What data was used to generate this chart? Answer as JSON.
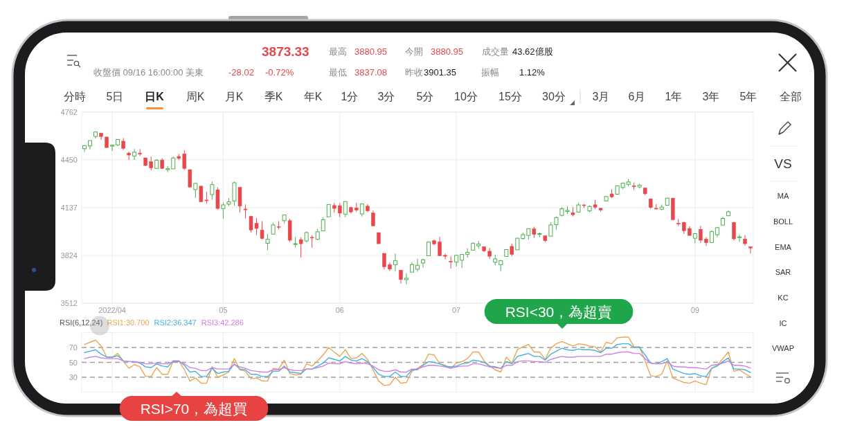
{
  "chart_data": [
    {
      "type": "other",
      "annotations": [
        "3873.33",
        "最高",
        "3880.95",
        "今開",
        "3880.95",
        "成交量",
        "43.62億股",
        "收盤價 09/16 16:00:00 美東",
        "-28.02",
        "-0.72%",
        "最低",
        "3837.08",
        "昨收",
        "3901.35",
        "振幅",
        "1.12%",
        "分時",
        "5日",
        "日K",
        "周K",
        "月K",
        "季K",
        "年K",
        "1分",
        "3分",
        "5分",
        "10分",
        "15分",
        "30分",
        "3月",
        "6月",
        "1年",
        "3年",
        "5年",
        "全部",
        "VS",
        "MA",
        "BOLL",
        "EMA",
        "SAR",
        "KC",
        "IC",
        "VWAP"
      ]
    },
    {
      "type": "candlestick",
      "ylim": [
        3512,
        4762
      ],
      "yticks": [
        3512,
        3824,
        4137,
        4450,
        4762
      ],
      "grid": true,
      "categories": [
        null,
        null,
        null,
        null,
        null,
        "2022/04",
        null,
        null,
        null,
        null,
        null,
        null,
        null,
        null,
        null,
        null,
        null,
        null,
        null,
        null,
        null,
        null,
        null,
        null,
        null,
        "05",
        null,
        null,
        null,
        null,
        null,
        null,
        null,
        null,
        null,
        null,
        null,
        null,
        null,
        null,
        null,
        null,
        null,
        null,
        null,
        null,
        "06",
        null,
        null,
        null,
        null,
        null,
        null,
        null,
        null,
        null,
        null,
        null,
        null,
        null,
        null,
        null,
        null,
        null,
        null,
        null,
        null,
        "07",
        null,
        null,
        null,
        null,
        null,
        null,
        null,
        null,
        null,
        null,
        null,
        null,
        null,
        null,
        null,
        null,
        null,
        null,
        null,
        null,
        null,
        null,
        null,
        null,
        null,
        null,
        null,
        null,
        null,
        null,
        null,
        null,
        null,
        null,
        null,
        null,
        null,
        null,
        null,
        null,
        null,
        null,
        "09",
        null,
        null,
        null,
        null,
        null,
        null,
        null,
        null,
        null,
        null
      ],
      "ohlc": [
        [
          4523,
          4546,
          4501,
          4543
        ],
        [
          4541,
          4576,
          4518,
          4576
        ],
        [
          4603,
          4637,
          4590,
          4632
        ],
        [
          4624,
          4628,
          4581,
          4602
        ],
        [
          4599,
          4603,
          4530,
          4530
        ],
        [
          4540,
          4549,
          4508,
          4546
        ],
        [
          4548,
          4584,
          4539,
          4583
        ],
        [
          4572,
          4593,
          4514,
          4525
        ],
        [
          4494,
          4504,
          4450,
          4481
        ],
        [
          4475,
          4521,
          4450,
          4500
        ],
        [
          4494,
          4520,
          4475,
          4488
        ],
        [
          4463,
          4464,
          4408,
          4413
        ],
        [
          4438,
          4471,
          4381,
          4397
        ],
        [
          4394,
          4454,
          4393,
          4447
        ],
        [
          4449,
          4460,
          4391,
          4393
        ],
        [
          4386,
          4410,
          4370,
          4392
        ],
        [
          4391,
          4471,
          4391,
          4462
        ],
        [
          4472,
          4488,
          4449,
          4459
        ],
        [
          4489,
          4513,
          4384,
          4394
        ],
        [
          4386,
          4386,
          4268,
          4272
        ],
        [
          4255,
          4299,
          4201,
          4296
        ],
        [
          4278,
          4278,
          4175,
          4175
        ],
        [
          4187,
          4241,
          4163,
          4184
        ],
        [
          4223,
          4308,
          4189,
          4288
        ],
        [
          4254,
          4270,
          4124,
          4132
        ],
        [
          4131,
          4170,
          4063,
          4155
        ],
        [
          4160,
          4200,
          4147,
          4175
        ],
        [
          4181,
          4308,
          4149,
          4300
        ],
        [
          4270,
          4270,
          4106,
          4147
        ],
        [
          4128,
          4158,
          4068,
          4123
        ],
        [
          4081,
          4081,
          3975,
          3991
        ],
        [
          4035,
          4069,
          3958,
          4001
        ],
        [
          3990,
          4049,
          3929,
          3935
        ],
        [
          3904,
          3965,
          3859,
          3930
        ],
        [
          3964,
          4039,
          3964,
          4024
        ],
        [
          4013,
          4049,
          3995,
          4008
        ],
        [
          4052,
          4091,
          4034,
          4089
        ],
        [
          4052,
          4063,
          3912,
          3924
        ],
        [
          3899,
          3946,
          3877,
          3901
        ],
        [
          3928,
          3943,
          3810,
          3901
        ],
        [
          3919,
          3982,
          3909,
          3974
        ],
        [
          3943,
          3956,
          3875,
          3941
        ],
        [
          3930,
          3999,
          3925,
          3979
        ],
        [
          3985,
          4075,
          3985,
          4058
        ],
        [
          4077,
          4158,
          4077,
          4158
        ],
        [
          4151,
          4168,
          4105,
          4132
        ],
        [
          4150,
          4167,
          4074,
          4101
        ],
        [
          4095,
          4178,
          4074,
          4177
        ],
        [
          4138,
          4143,
          4099,
          4109
        ],
        [
          4135,
          4169,
          4109,
          4121
        ],
        [
          4096,
          4165,
          4080,
          4161
        ],
        [
          4147,
          4160,
          4107,
          4116
        ],
        [
          4102,
          4119,
          4017,
          4018
        ],
        [
          3974,
          3974,
          3900,
          3901
        ],
        [
          3838,
          3838,
          3734,
          3750
        ],
        [
          3764,
          3778,
          3722,
          3735
        ],
        [
          3764,
          3837,
          3722,
          3790
        ],
        [
          3728,
          3728,
          3640,
          3667
        ],
        [
          3666,
          3708,
          3637,
          3675
        ],
        [
          3715,
          3780,
          3715,
          3765
        ],
        [
          3734,
          3802,
          3718,
          3760
        ],
        [
          3775,
          3803,
          3744,
          3796
        ],
        [
          3822,
          3914,
          3822,
          3912
        ],
        [
          3921,
          3928,
          3890,
          3900
        ],
        [
          3913,
          3946,
          3820,
          3822
        ],
        [
          3825,
          3837,
          3799,
          3819
        ],
        [
          3786,
          3819,
          3739,
          3785
        ],
        [
          3781,
          3830,
          3752,
          3825
        ],
        [
          3793,
          3832,
          3742,
          3831
        ],
        [
          3832,
          3871,
          3809,
          3845
        ],
        [
          3859,
          3911,
          3859,
          3903
        ],
        [
          3888,
          3919,
          3869,
          3899
        ],
        [
          3881,
          3881,
          3847,
          3854
        ],
        [
          3852,
          3873,
          3802,
          3819
        ],
        [
          3780,
          3829,
          3759,
          3802
        ],
        [
          3764,
          3796,
          3722,
          3790
        ],
        [
          3818,
          3864,
          3817,
          3863
        ],
        [
          3884,
          3902,
          3819,
          3831
        ],
        [
          3861,
          3940,
          3861,
          3937
        ],
        [
          3935,
          3974,
          3928,
          3960
        ],
        [
          3955,
          3999,
          3928,
          3999
        ],
        [
          3998,
          4012,
          3939,
          3962
        ],
        [
          3966,
          3975,
          3943,
          3967
        ],
        [
          3953,
          3953,
          3911,
          3921
        ],
        [
          3951,
          4040,
          3951,
          4024
        ],
        [
          4026,
          4079,
          3993,
          4072
        ],
        [
          4087,
          4140,
          4079,
          4130
        ],
        [
          4112,
          4145,
          4096,
          4119
        ],
        [
          4104,
          4140,
          4080,
          4091
        ],
        [
          4108,
          4168,
          4108,
          4155
        ],
        [
          4155,
          4161,
          4135,
          4152
        ],
        [
          4116,
          4152,
          4107,
          4145
        ],
        [
          4156,
          4187,
          4129,
          4140
        ],
        [
          4133,
          4137,
          4112,
          4122
        ],
        [
          4181,
          4211,
          4177,
          4210
        ],
        [
          4227,
          4258,
          4201,
          4207
        ],
        [
          4225,
          4280,
          4220,
          4280
        ],
        [
          4269,
          4302,
          4257,
          4297
        ],
        [
          4290,
          4325,
          4278,
          4305
        ],
        [
          4280,
          4302,
          4253,
          4274
        ],
        [
          4273,
          4293,
          4262,
          4284
        ],
        [
          4266,
          4266,
          4219,
          4228
        ],
        [
          4195,
          4195,
          4130,
          4138
        ],
        [
          4133,
          4160,
          4124,
          4129
        ],
        [
          4127,
          4157,
          4120,
          4141
        ],
        [
          4153,
          4201,
          4148,
          4199
        ],
        [
          4199,
          4203,
          4058,
          4058
        ],
        [
          4035,
          4063,
          4017,
          4031
        ],
        [
          4041,
          4045,
          3965,
          3986
        ],
        [
          4001,
          4015,
          3955,
          3955
        ],
        [
          3937,
          3970,
          3904,
          3967
        ],
        [
          3995,
          4018,
          3906,
          3924
        ],
        [
          3931,
          3943,
          3887,
          3908
        ],
        [
          3909,
          3988,
          3906,
          3980
        ],
        [
          3960,
          4011,
          3945,
          4006
        ],
        [
          4023,
          4077,
          4023,
          4067
        ],
        [
          4084,
          4119,
          4084,
          4110
        ],
        [
          4040,
          4045,
          3921,
          3933
        ],
        [
          3941,
          3962,
          3913,
          3946
        ],
        [
          3932,
          3959,
          3888,
          3901
        ],
        [
          3880.95,
          3880.95,
          3837.08,
          3873.33
        ]
      ],
      "colors": [
        "#4cae50",
        "#4cae50",
        "#4cae50",
        "#e8474c",
        "#e8474c",
        "#4cae50",
        "#4cae50",
        "#e8474c",
        "#e8474c",
        "#4cae50",
        "#e8474c",
        "#e8474c",
        "#e8474c",
        "#4cae50",
        "#e8474c",
        "#4cae50",
        "#4cae50",
        "#e8474c",
        "#e8474c",
        "#e8474c",
        "#4cae50",
        "#e8474c",
        "#e8474c",
        "#4cae50",
        "#e8474c",
        "#4cae50",
        "#4cae50",
        "#4cae50",
        "#e8474c",
        "#e8474c",
        "#e8474c",
        "#e8474c",
        "#e8474c",
        "#4cae50",
        "#4cae50",
        "#e8474c",
        "#4cae50",
        "#e8474c",
        "#4cae50",
        "#e8474c",
        "#4cae50",
        "#e8474c",
        "#4cae50",
        "#4cae50",
        "#4cae50",
        "#e8474c",
        "#e8474c",
        "#4cae50",
        "#e8474c",
        "#e8474c",
        "#4cae50",
        "#e8474c",
        "#e8474c",
        "#e8474c",
        "#e8474c",
        "#e8474c",
        "#4cae50",
        "#e8474c",
        "#4cae50",
        "#4cae50",
        "#4cae50",
        "#4cae50",
        "#4cae50",
        "#e8474c",
        "#e8474c",
        "#e8474c",
        "#e8474c",
        "#4cae50",
        "#4cae50",
        "#4cae50",
        "#4cae50",
        "#4cae50",
        "#e8474c",
        "#e8474c",
        "#4cae50",
        "#4cae50",
        "#4cae50",
        "#e8474c",
        "#4cae50",
        "#4cae50",
        "#4cae50",
        "#e8474c",
        "#4cae50",
        "#e8474c",
        "#4cae50",
        "#4cae50",
        "#4cae50",
        "#4cae50",
        "#e8474c",
        "#4cae50",
        "#e8474c",
        "#4cae50",
        "#e8474c",
        "#e8474c",
        "#4cae50",
        "#e8474c",
        "#4cae50",
        "#4cae50",
        "#4cae50",
        "#e8474c",
        "#4cae50",
        "#e8474c",
        "#e8474c",
        "#e8474c",
        "#4cae50",
        "#4cae50",
        "#e8474c",
        "#e8474c",
        "#e8474c",
        "#e8474c",
        "#4cae50",
        "#e8474c",
        "#e8474c",
        "#4cae50",
        "#4cae50",
        "#4cae50",
        "#4cae50",
        "#e8474c",
        "#4cae50",
        "#e8474c",
        "#e8474c"
      ]
    },
    {
      "type": "line",
      "ylim": [
        10,
        90
      ],
      "yticks": [
        30,
        50,
        70
      ],
      "tick_labels": "y",
      "grid": "x",
      "legend": "top left",
      "legend_title": "RSI(6,12,24)",
      "categories": [
        null,
        null,
        null,
        null,
        null,
        "2022/04",
        null,
        null,
        null,
        null,
        null,
        null,
        null,
        null,
        null,
        null,
        null,
        null,
        null,
        null,
        null,
        null,
        null,
        null,
        null,
        "05",
        null,
        null,
        null,
        null,
        null,
        null,
        null,
        null,
        null,
        null,
        null,
        null,
        null,
        null,
        null,
        null,
        null,
        null,
        null,
        null,
        "06",
        null,
        null,
        null,
        null,
        null,
        null,
        null,
        null,
        null,
        null,
        null,
        null,
        null,
        null,
        null,
        null,
        null,
        null,
        null,
        null,
        "07",
        null,
        null,
        null,
        null,
        null,
        null,
        null,
        null,
        null,
        null,
        null,
        null,
        null,
        null,
        null,
        null,
        null,
        null,
        null,
        null,
        null,
        null,
        null,
        null,
        null,
        null,
        null,
        null,
        null,
        null,
        null,
        null,
        null,
        null,
        null,
        null,
        null,
        null,
        null,
        null,
        null,
        null,
        "09",
        null,
        null,
        null,
        null,
        null,
        null,
        null,
        null,
        null,
        null
      ],
      "ref_lines": [
        {
          "axis": "y",
          "value": 70,
          "color": "#9e9e9e",
          "line_style": "dashed"
        },
        {
          "axis": "y",
          "value": 50,
          "color": "#9e9e9e",
          "line_style": "dashed"
        },
        {
          "axis": "y",
          "value": 30,
          "color": "#9e9e9e",
          "line_style": "dashed"
        }
      ],
      "series": [
        {
          "name": "RSI1:30.700",
          "color": "#eca64e",
          "values": [
            74,
            77,
            80,
            72,
            57,
            57,
            62,
            52,
            42,
            47,
            44,
            31,
            31,
            43,
            34,
            34,
            52,
            52,
            40,
            25,
            29,
            22,
            22,
            44,
            30,
            33,
            37,
            55,
            40,
            38,
            28,
            29,
            25,
            25,
            42,
            41,
            53,
            35,
            33,
            34,
            48,
            45,
            52,
            60,
            70,
            64,
            58,
            67,
            55,
            56,
            62,
            54,
            40,
            25,
            19,
            20,
            30,
            22,
            23,
            38,
            42,
            47,
            61,
            60,
            48,
            46,
            42,
            49,
            51,
            55,
            64,
            64,
            52,
            45,
            40,
            37,
            57,
            49,
            67,
            71,
            74,
            64,
            64,
            54,
            69,
            75,
            78,
            75,
            72,
            75,
            74,
            72,
            71,
            64,
            77,
            75,
            83,
            84,
            84,
            71,
            71,
            52,
            32,
            31,
            34,
            52,
            29,
            26,
            23,
            22,
            25,
            22,
            20,
            42,
            46,
            55,
            64,
            38,
            40,
            35,
            30.7
          ]
        },
        {
          "name": "RSI2:36.347",
          "color": "#45b1df",
          "values": [
            63,
            65,
            67,
            61,
            57,
            57,
            59,
            52,
            51,
            51,
            49,
            44,
            43,
            48,
            45,
            44,
            52,
            52,
            46,
            37,
            38,
            31,
            31,
            42,
            35,
            37,
            38,
            48,
            41,
            40,
            34,
            34,
            31,
            31,
            38,
            38,
            45,
            37,
            36,
            35,
            41,
            41,
            45,
            49,
            56,
            54,
            52,
            58,
            53,
            52,
            55,
            51,
            43,
            34,
            31,
            31,
            37,
            31,
            31,
            40,
            40,
            46,
            51,
            50,
            48,
            45,
            44,
            45,
            48,
            49,
            53,
            52,
            50,
            45,
            44,
            42,
            51,
            48,
            58,
            60,
            62,
            58,
            58,
            53,
            61,
            65,
            69,
            67,
            66,
            68,
            67,
            67,
            66,
            63,
            69,
            69,
            74,
            75,
            75,
            70,
            70,
            60,
            49,
            48,
            51,
            55,
            41,
            38,
            35,
            34,
            35,
            32,
            31,
            42,
            45,
            51,
            56,
            41,
            41,
            40,
            36.347
          ]
        },
        {
          "name": "RSI3:42.286",
          "color": "#d07fe3",
          "values": [
            55,
            57,
            58,
            56,
            55,
            55,
            55,
            52,
            51,
            51,
            50,
            48,
            48,
            49,
            48,
            48,
            51,
            51,
            48,
            43,
            42,
            39,
            39,
            43,
            41,
            41,
            41,
            47,
            44,
            42,
            39,
            38,
            37,
            37,
            40,
            40,
            43,
            40,
            39,
            39,
            41,
            41,
            43,
            45,
            49,
            48,
            48,
            51,
            49,
            48,
            49,
            48,
            45,
            40,
            38,
            38,
            40,
            37,
            37,
            41,
            41,
            44,
            46,
            46,
            45,
            44,
            42,
            44,
            45,
            45,
            48,
            48,
            46,
            44,
            43,
            42,
            46,
            46,
            51,
            52,
            52,
            51,
            51,
            50,
            54,
            56,
            58,
            57,
            57,
            58,
            58,
            58,
            58,
            58,
            61,
            61,
            63,
            64,
            64,
            62,
            62,
            55,
            49,
            48,
            48,
            51,
            45,
            44,
            44,
            43,
            43,
            42,
            41,
            46,
            47,
            49,
            52,
            46,
            46,
            45,
            42.286
          ]
        }
      ],
      "annotations": [
        "RSI<30，為超賣",
        "RSI>70，為超買"
      ]
    }
  ]
}
